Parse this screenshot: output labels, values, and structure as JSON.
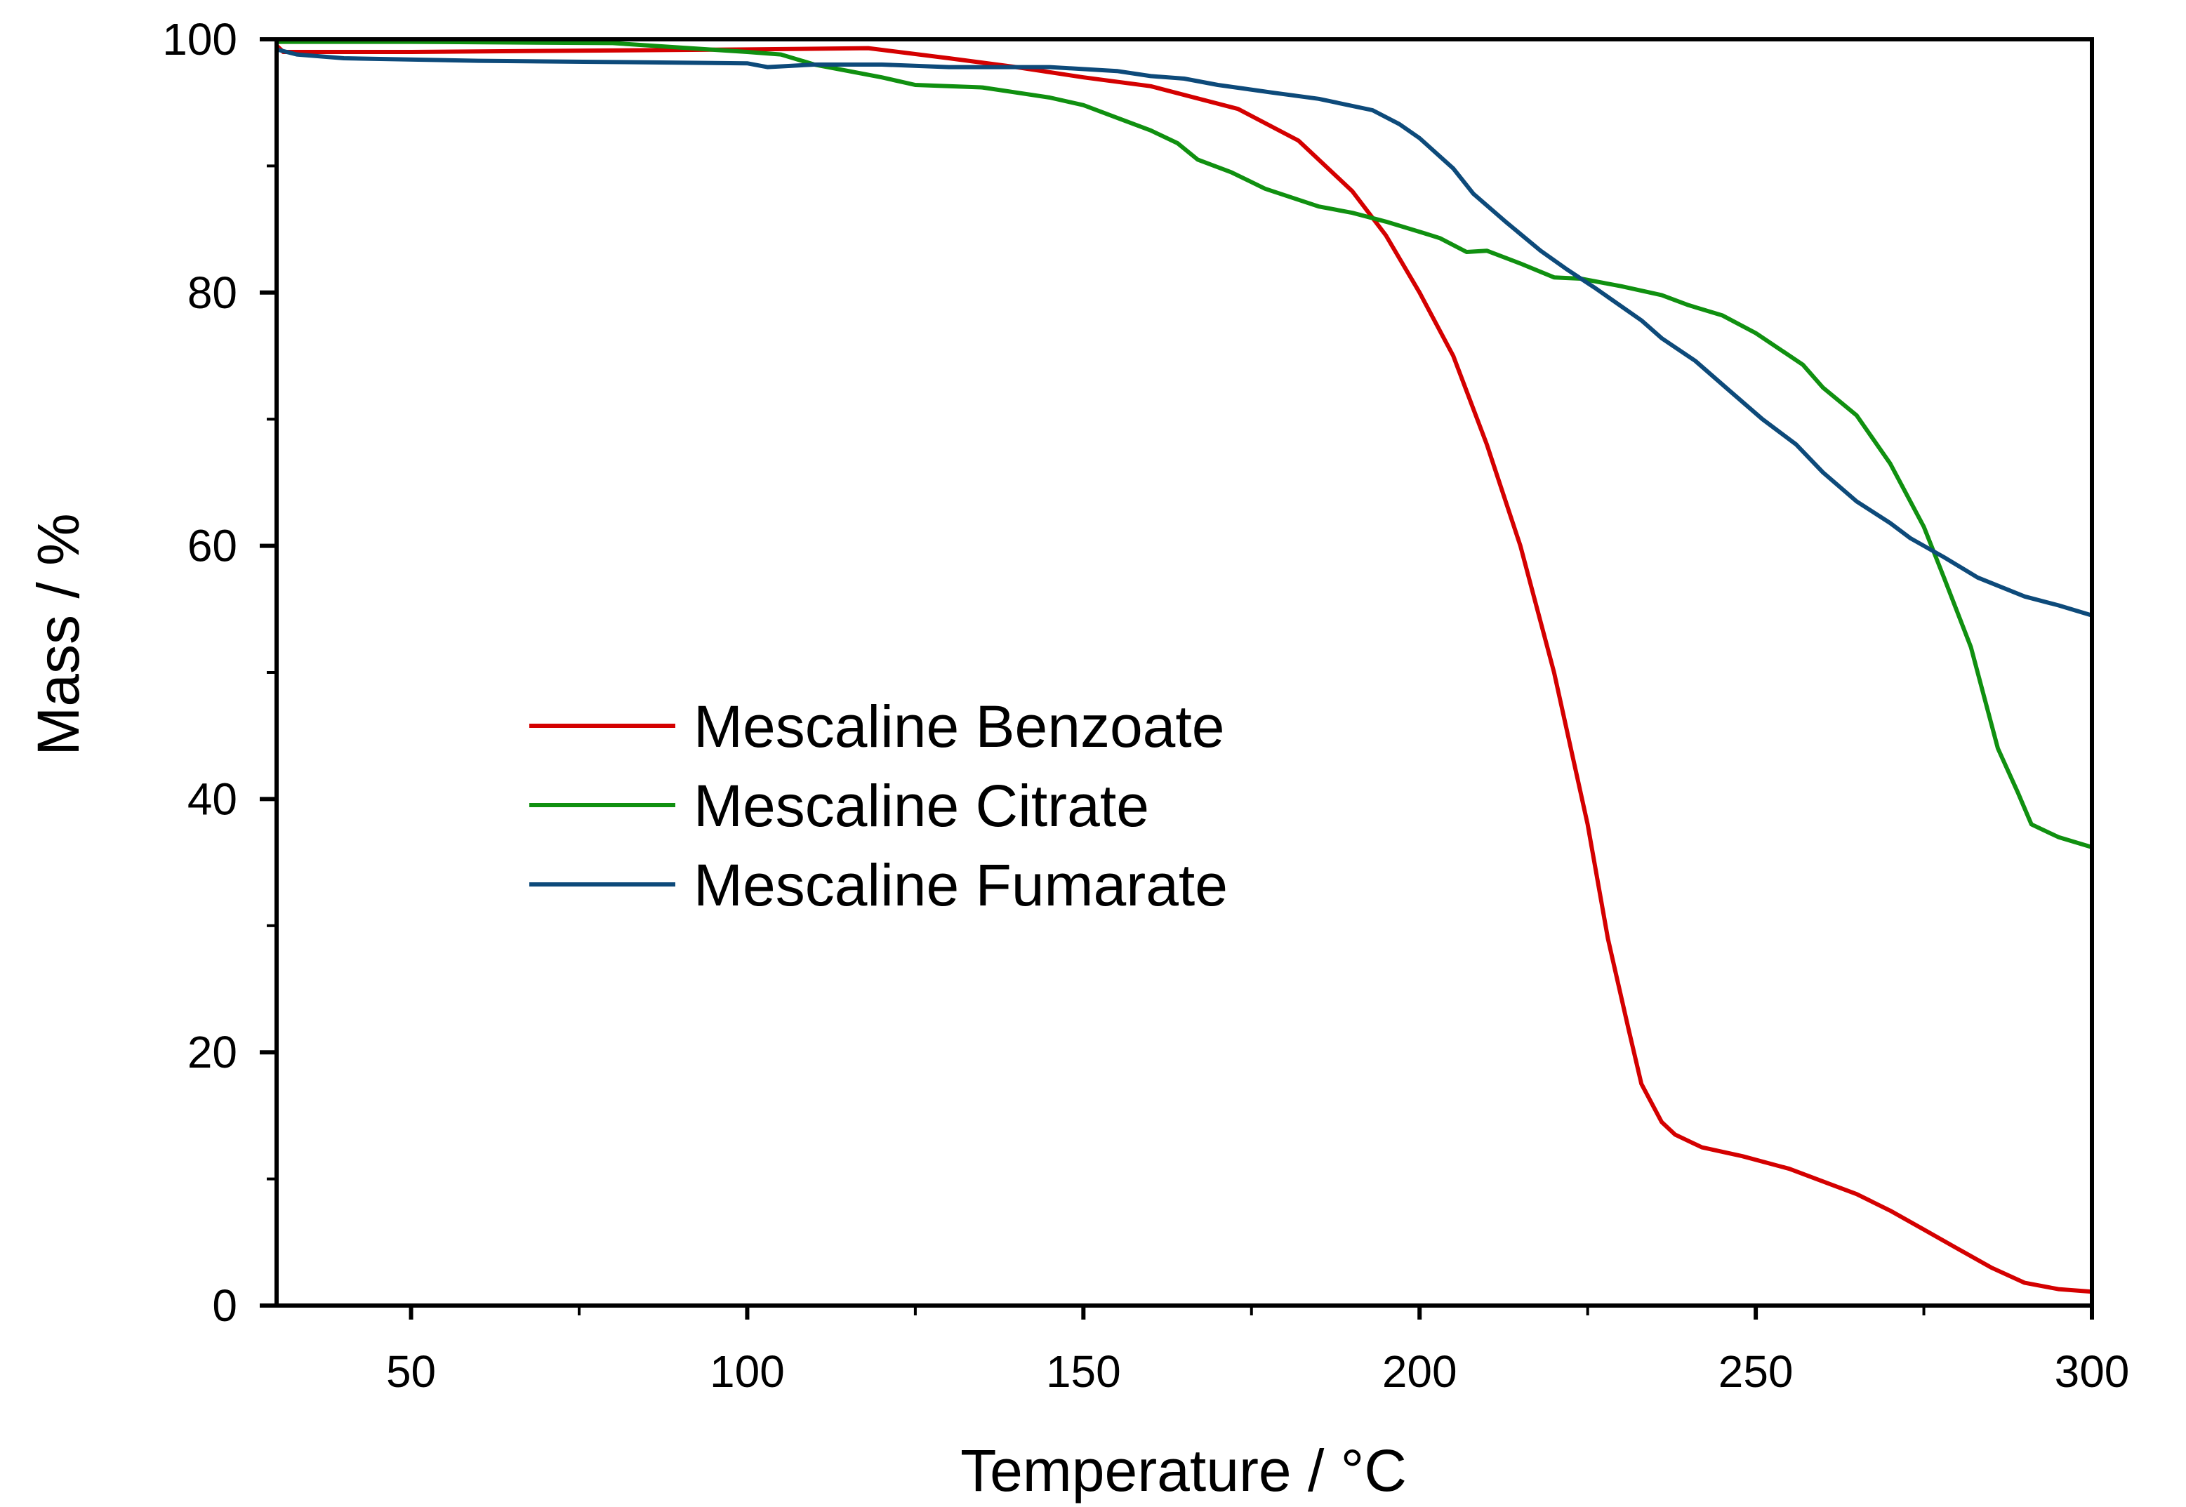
{
  "chart_data": {
    "type": "line",
    "title": "",
    "xlabel": "Temperature / °C",
    "ylabel": "Mass / %",
    "xlim": [
      30,
      300
    ],
    "ylim": [
      0,
      100
    ],
    "x_ticks": [
      50,
      100,
      150,
      200,
      250,
      300
    ],
    "y_ticks": [
      0,
      20,
      40,
      60,
      80,
      100
    ],
    "x_tick_labels": [
      "50",
      "100",
      "150",
      "200",
      "250",
      "300"
    ],
    "y_tick_labels": [
      "0",
      "20",
      "40",
      "60",
      "80",
      "100"
    ],
    "grid": false,
    "legend_placement": "center-left",
    "series": [
      {
        "name": "Mescaline Benzoate",
        "color": "#d40000",
        "x": [
          30,
          31,
          50,
          100,
          118,
          130,
          140,
          150,
          160,
          173,
          182,
          190,
          195,
          200,
          205,
          210,
          215,
          220,
          225,
          228,
          231,
          233,
          236,
          238,
          242,
          248,
          255,
          260,
          265,
          270,
          275,
          280,
          285,
          290,
          295,
          300
        ],
        "y": [
          99.5,
          99,
          99,
          99.2,
          99.3,
          98.5,
          97.8,
          97,
          96.3,
          94.5,
          92,
          88,
          84.5,
          80,
          75,
          68,
          60,
          50,
          38,
          29,
          22,
          17.5,
          14.5,
          13.5,
          12.5,
          11.8,
          10.8,
          9.8,
          8.8,
          7.5,
          6,
          4.5,
          3,
          1.8,
          1.3,
          1.1
        ]
      },
      {
        "name": "Mescaline Citrate",
        "color": "#109010",
        "x": [
          30,
          50,
          80,
          100,
          105,
          110,
          120,
          125,
          135,
          140,
          145,
          150,
          155,
          160,
          164,
          167,
          172,
          177,
          185,
          190,
          195,
          200,
          203,
          207,
          210,
          215,
          220,
          224,
          230,
          236,
          240,
          245,
          250,
          257,
          260,
          265,
          270,
          275,
          278,
          282,
          286,
          289,
          291,
          295,
          300
        ],
        "y": [
          99.8,
          99.8,
          99.7,
          99,
          98.8,
          98,
          97,
          96.4,
          96.2,
          95.8,
          95.4,
          94.8,
          93.8,
          92.8,
          91.8,
          90.5,
          89.5,
          88.2,
          86.8,
          86.3,
          85.6,
          84.8,
          84.3,
          83.2,
          83.3,
          82.3,
          81.2,
          81.1,
          80.5,
          79.8,
          79,
          78.2,
          76.8,
          74.3,
          72.5,
          70.3,
          66.5,
          61.5,
          57.5,
          52,
          44,
          40.5,
          38,
          37,
          36.2
        ]
      },
      {
        "name": "Mescaline Fumarate",
        "color": "#0d4a7a",
        "x": [
          30,
          33,
          40,
          60,
          80,
          100,
          103,
          110,
          120,
          130,
          145,
          155,
          160,
          165,
          170,
          178,
          185,
          193,
          197,
          200,
          205,
          208,
          213,
          218,
          222,
          226,
          233,
          236,
          241,
          246,
          251,
          256,
          260,
          265,
          270,
          273,
          278,
          283,
          290,
          295,
          300
        ],
        "y": [
          99.2,
          98.8,
          98.5,
          98.3,
          98.2,
          98.1,
          97.8,
          98,
          98,
          97.8,
          97.8,
          97.5,
          97.1,
          96.9,
          96.4,
          95.8,
          95.3,
          94.4,
          93.3,
          92.2,
          89.8,
          87.8,
          85.5,
          83.3,
          81.8,
          80.4,
          77.8,
          76.4,
          74.6,
          72.3,
          70,
          68,
          65.8,
          63.5,
          61.8,
          60.6,
          59.1,
          57.5,
          56,
          55.3,
          54.5
        ]
      }
    ]
  }
}
